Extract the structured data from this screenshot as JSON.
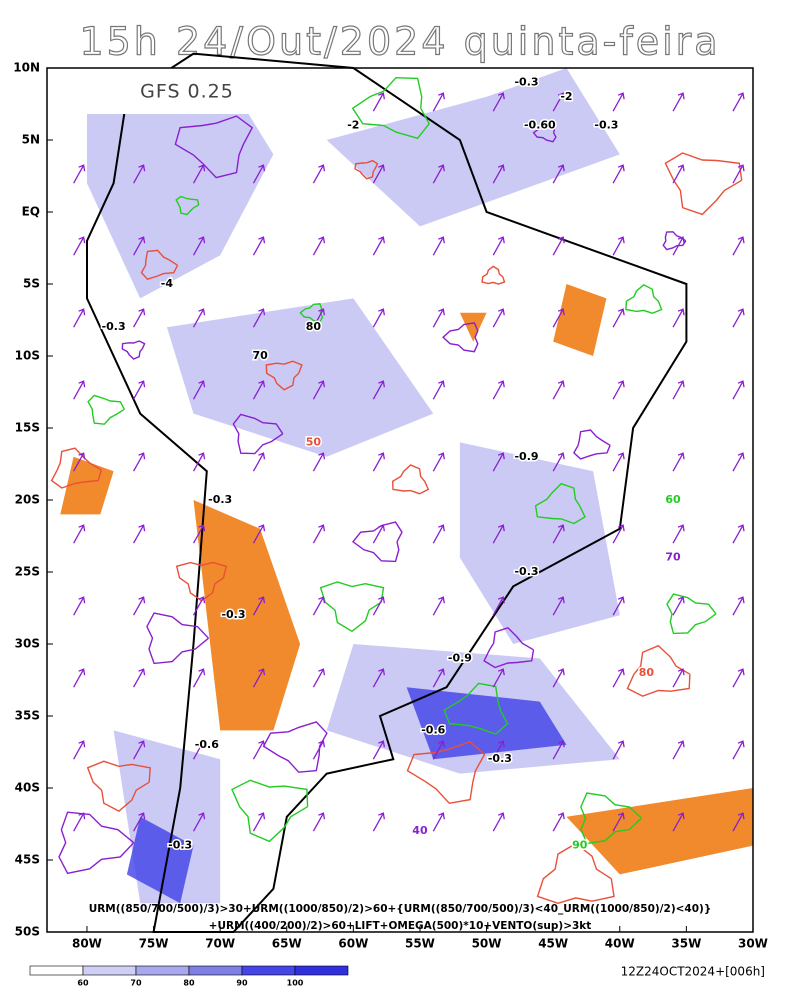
{
  "header": {
    "title": "15h 24/Out/2024 quinta-feira",
    "model": "GFS 0.25"
  },
  "map": {
    "lat_labels": [
      "10N",
      "5N",
      "EQ",
      "5S",
      "10S",
      "15S",
      "20S",
      "25S",
      "30S",
      "35S",
      "40S",
      "45S",
      "50S"
    ],
    "lon_labels": [
      "80W",
      "75W",
      "70W",
      "65W",
      "60W",
      "55W",
      "50W",
      "45W",
      "40W",
      "35W",
      "30W"
    ],
    "contour_labels": [
      "-0.3",
      "-2",
      "-0.60",
      "-0.3",
      "-2",
      "-4",
      "80",
      "70",
      "-0.3",
      "-0.9",
      "-0.3",
      "-0.3",
      "-0.3",
      "-0.9",
      "-0.6",
      "-0.3",
      "-0.6",
      "-0.3",
      "90",
      "80",
      "70",
      "60",
      "50",
      "40"
    ],
    "formula": [
      "URM((850/700/500)/3)>30+URM((1000/850)/2)>60+{URM((850/700/500)/3)<40_URM((1000/850)/2)<40)}",
      "+URM((400/200)/2)>60+LIFT+OMEGA(500)*10+VENTO(sup)>3kt"
    ]
  },
  "colorbar": {
    "labels": [
      "60",
      "70",
      "80",
      "90",
      "100"
    ]
  },
  "footer": {
    "timestamp": "12Z24OCT2024+[006h]"
  }
}
